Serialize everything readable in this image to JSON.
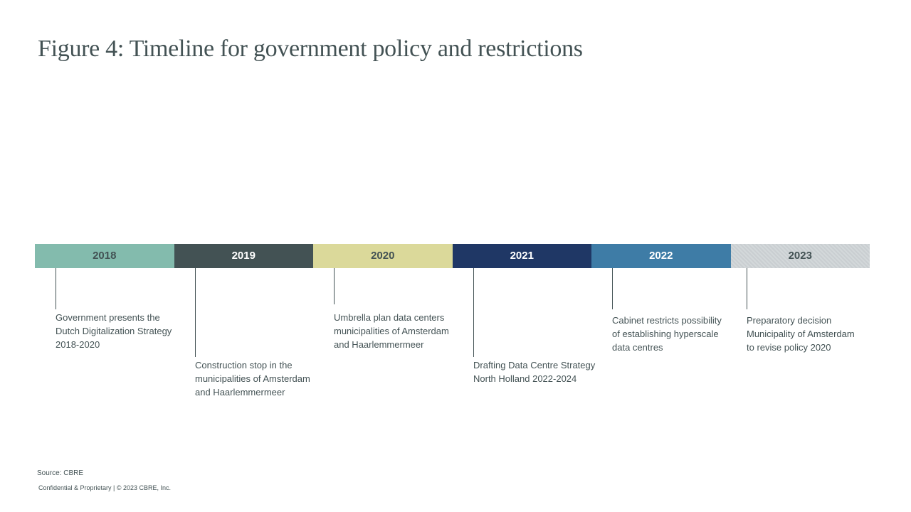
{
  "title": "Figure 4: Timeline for government policy and restrictions",
  "years": [
    {
      "label": "2018",
      "bg": "#83bbad",
      "fg": "#435254"
    },
    {
      "label": "2019",
      "bg": "#435254",
      "fg": "#ffffff"
    },
    {
      "label": "2020",
      "bg": "#dbd99a",
      "fg": "#435254"
    },
    {
      "label": "2021",
      "bg": "#1f3765",
      "fg": "#ffffff"
    },
    {
      "label": "2022",
      "bg": "#3e7ca6",
      "fg": "#ffffff"
    },
    {
      "label": "2023",
      "bg": "#cad1d3",
      "fg": "#435254",
      "hatched": true
    }
  ],
  "events": [
    {
      "year": "2018",
      "text": "Government presents the\nDutch Digitalization Strategy\n2018-2020"
    },
    {
      "year": "2019",
      "text": "Construction stop in the\nmunicipalities  of Amsterdam\nand Haarlemmermeer"
    },
    {
      "year": "2020",
      "text": "Umbrella plan data centers\nmunicipalities  of Amsterdam\nand Haarlemmermeer"
    },
    {
      "year": "2021",
      "text": "Drafting Data Centre Strategy\nNorth Holland 2022-2024"
    },
    {
      "year": "2022",
      "text": "Cabinet restricts possibility\nof establishing hyperscale\ndata centres"
    },
    {
      "year": "2023",
      "text": "Preparatory decision\nMunicipality of Amsterdam\nto revise policy 2020"
    }
  ],
  "source": "Source: CBRE",
  "footer": "Confidential & Proprietary | © 2023 CBRE, Inc."
}
